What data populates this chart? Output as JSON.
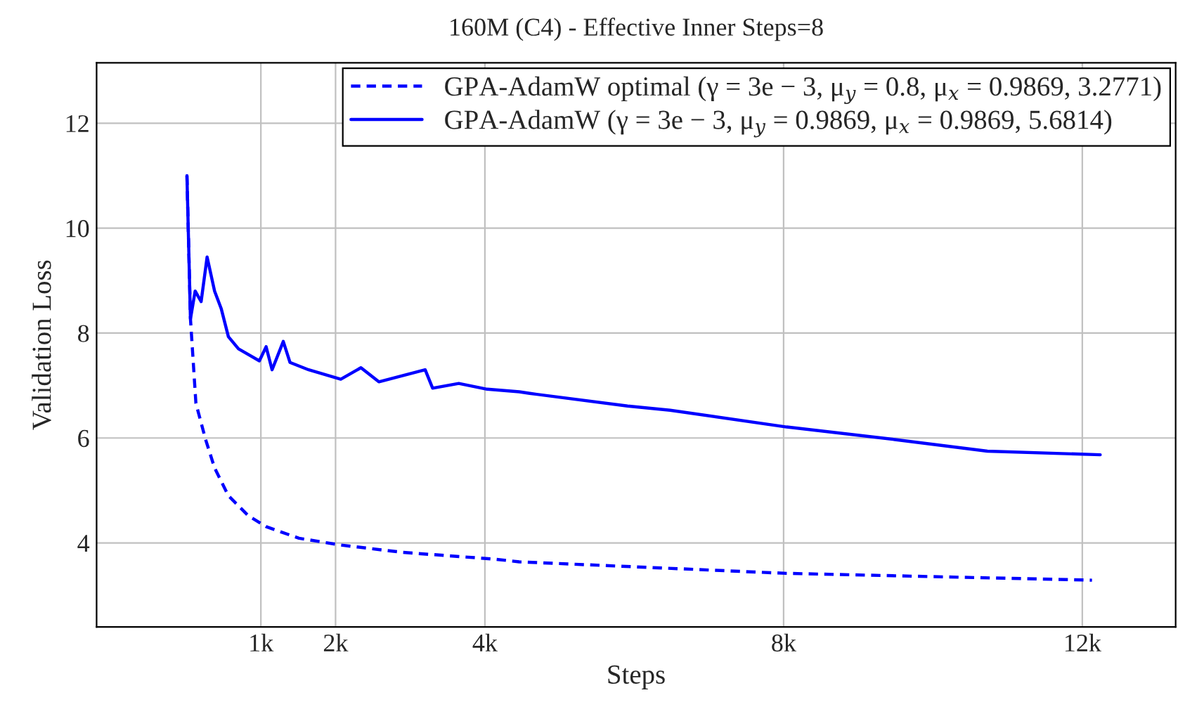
{
  "chart_data": {
    "type": "line",
    "title": "160M (C4) - Effective Inner Steps=8",
    "xlabel": "Steps",
    "ylabel": "Validation Loss",
    "xlim": [
      -1200,
      13250
    ],
    "ylim": [
      2.4,
      13.15
    ],
    "xticks": [
      {
        "value": 1000,
        "label": "1k"
      },
      {
        "value": 2000,
        "label": "2k"
      },
      {
        "value": 4000,
        "label": "4k"
      },
      {
        "value": 8000,
        "label": "8k"
      },
      {
        "value": 12000,
        "label": "12k"
      }
    ],
    "yticks": [
      4,
      6,
      8,
      10,
      12
    ],
    "grid": true,
    "legend": "top right",
    "series": [
      {
        "name": "GPA-AdamW optimal (γ = 3e − 3, μ$_{y}$ = 0.8, μ$_{x}$ = 0.9869, 3.2771)",
        "color": "#0000ff",
        "line_style": "dashed",
        "x": [
          10,
          57,
          130,
          260,
          380,
          565,
          830,
          1070,
          1510,
          2070,
          2900,
          4140,
          4460,
          8040,
          12130
        ],
        "values": [
          11.0,
          8.27,
          6.66,
          5.97,
          5.43,
          4.9,
          4.52,
          4.31,
          4.09,
          3.96,
          3.82,
          3.69,
          3.64,
          3.42,
          3.29
        ]
      },
      {
        "name": "GPA-AdamW (γ = 3e − 3, μ$_{y}$ = 0.9869, μ$_{x}$ = 0.9869, 5.6814)",
        "color": "#0000ff",
        "line_style": "solid",
        "x": [
          10,
          57,
          120,
          200,
          280,
          380,
          470,
          565,
          700,
          980,
          1070,
          1150,
          1300,
          1390,
          1640,
          2070,
          2340,
          2580,
          3200,
          3300,
          3650,
          4030,
          4460,
          4600,
          5910,
          6480,
          8040,
          9490,
          10730,
          12240
        ],
        "values": [
          11.0,
          8.27,
          8.8,
          8.6,
          9.45,
          8.8,
          8.46,
          7.93,
          7.7,
          7.47,
          7.74,
          7.3,
          7.84,
          7.44,
          7.3,
          7.12,
          7.34,
          7.07,
          7.3,
          6.95,
          7.04,
          6.93,
          6.88,
          6.85,
          6.61,
          6.53,
          6.21,
          5.97,
          5.75,
          5.68
        ]
      }
    ]
  }
}
